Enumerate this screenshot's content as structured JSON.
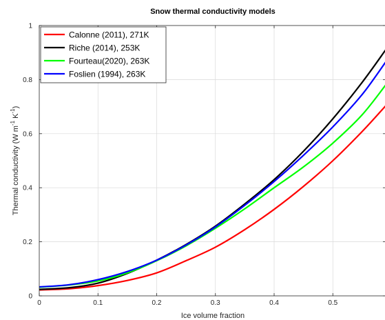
{
  "chart_data": {
    "type": "line",
    "title": "Snow thermal conductivity models",
    "xlabel": "Ice volume fraction",
    "ylabel": {
      "main": "Thermal conductivity (W m",
      "exp1": "-1",
      "mid": " K",
      "exp2": "-1",
      "end": ")"
    },
    "xlim": [
      0,
      0.59
    ],
    "ylim": [
      0,
      1
    ],
    "xticks": [
      "0",
      "0.1",
      "0.2",
      "0.3",
      "0.4",
      "0.5"
    ],
    "yticks": [
      "0",
      "0.2",
      "0.4",
      "0.6",
      "0.8",
      "1"
    ],
    "xtick_values": [
      0,
      0.1,
      0.2,
      0.3,
      0.4,
      0.5
    ],
    "ytick_values": [
      0,
      0.2,
      0.4,
      0.6,
      0.8,
      1
    ],
    "grid": true,
    "legend_position": "top-left",
    "series": [
      {
        "name": "Calonne (2011), 271K",
        "color": "#ff0000",
        "x": [
          0,
          0.05,
          0.1,
          0.15,
          0.2,
          0.25,
          0.3,
          0.35,
          0.4,
          0.45,
          0.5,
          0.55,
          0.59
        ],
        "y": [
          0.022,
          0.026,
          0.038,
          0.057,
          0.085,
          0.13,
          0.18,
          0.245,
          0.32,
          0.405,
          0.5,
          0.608,
          0.703
        ]
      },
      {
        "name": "Riche (2014), 253K",
        "color": "#000000",
        "x": [
          0,
          0.05,
          0.1,
          0.15,
          0.2,
          0.25,
          0.3,
          0.35,
          0.4,
          0.45,
          0.5,
          0.55,
          0.59
        ],
        "y": [
          0.024,
          0.03,
          0.047,
          0.083,
          0.132,
          0.19,
          0.258,
          0.34,
          0.43,
          0.535,
          0.655,
          0.79,
          0.91
        ]
      },
      {
        "name": "Fourteau(2020), 263K",
        "color": "#00ff00",
        "x": [
          0,
          0.05,
          0.1,
          0.15,
          0.2,
          0.25,
          0.3,
          0.35,
          0.4,
          0.45,
          0.5,
          0.55,
          0.59
        ],
        "y": [
          0.032,
          0.04,
          0.055,
          0.085,
          0.13,
          0.185,
          0.25,
          0.322,
          0.4,
          0.477,
          0.565,
          0.67,
          0.78
        ]
      },
      {
        "name": "Foslien (1994), 263K",
        "color": "#0000ff",
        "x": [
          0,
          0.05,
          0.1,
          0.15,
          0.2,
          0.25,
          0.3,
          0.35,
          0.4,
          0.45,
          0.5,
          0.55,
          0.59
        ],
        "y": [
          0.033,
          0.041,
          0.06,
          0.09,
          0.132,
          0.188,
          0.255,
          0.335,
          0.423,
          0.52,
          0.625,
          0.745,
          0.865
        ]
      }
    ]
  }
}
